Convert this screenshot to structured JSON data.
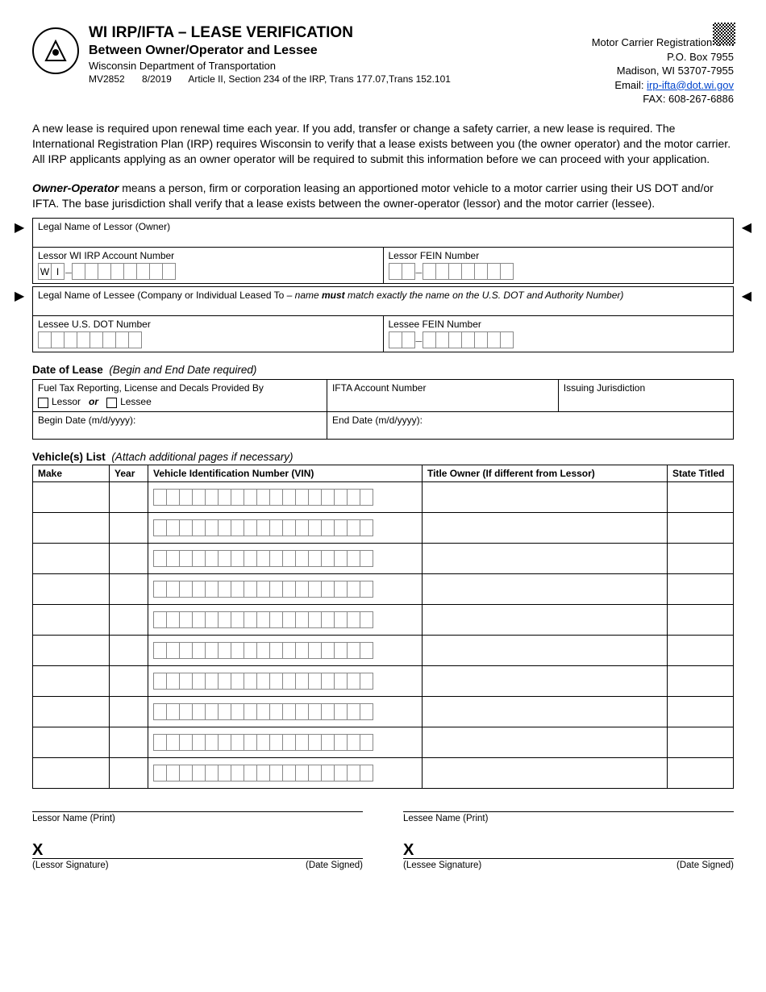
{
  "header": {
    "title": "WI IRP/IFTA – LEASE VERIFICATION",
    "subtitle": "Between Owner/Operator and Lessee",
    "department": "Wisconsin Department of Transportation",
    "form_no": "MV2852",
    "form_date": "8/2019",
    "form_ref": "Article II, Section 234 of the IRP, Trans 177.07,Trans 152.101"
  },
  "address": {
    "unit": "Motor Carrier Registration Unit",
    "pobox": "P.O. Box 7955",
    "citystate": "Madison, WI 53707-7955",
    "email_label": "Email: ",
    "email": "irp-ifta@dot.wi.gov",
    "fax": "FAX: 608-267-6886"
  },
  "para1": "A new lease is required upon renewal time each year. If you add, transfer or change a safety carrier, a new lease is required. The International Registration Plan (IRP) requires Wisconsin to verify that a lease exists between you (the owner operator) and the motor carrier. All IRP applicants applying as an owner operator will be required to submit this information before we can proceed with your application.",
  "para2_strong": "Owner-Operator",
  "para2_rest": " means a person, firm or corporation leasing an apportioned motor vehicle to a motor carrier using their US DOT and/or IFTA. The base jurisdiction shall verify that a lease exists between the owner-operator (lessor) and the motor carrier (lessee).",
  "fields": {
    "lessor_legal_name": "Legal Name of Lessor (Owner)",
    "lessor_irp": "Lessor WI IRP Account Number",
    "lessor_fein": "Lessor FEIN Number",
    "lessee_legal_name_pre": "Legal Name of Lessee (Company or Individual Leased To – ",
    "lessee_legal_name_em": "name ",
    "lessee_legal_name_bold": "must",
    "lessee_legal_name_post": " match exactly the name on the U.S. DOT and Authority Number)",
    "lessee_dot": "Lessee U.S. DOT Number",
    "lessee_fein": "Lessee FEIN Number",
    "wi_prefix_w": "W",
    "wi_prefix_i": "I"
  },
  "date_section": {
    "title": "Date of Lease",
    "note": "(Begin and End Date required)",
    "fuel_tax": "Fuel Tax Reporting, License and Decals Provided By",
    "lessor": "Lessor",
    "or": "or",
    "lessee": "Lessee",
    "ifta_acct": "IFTA Account Number",
    "jurisdiction": "Issuing Jurisdiction",
    "begin": "Begin Date (m/d/yyyy):",
    "end": "End Date (m/d/yyyy):"
  },
  "vehicle_section": {
    "title": "Vehicle(s) List",
    "note": "(Attach additional pages if necessary)",
    "cols": {
      "make": "Make",
      "year": "Year",
      "vin": "Vehicle Identification Number (VIN)",
      "owner": "Title Owner (If different from Lessor)",
      "state": "State Titled"
    },
    "row_count": 10,
    "vin_box_count": 17
  },
  "signatures": {
    "lessor_print": "Lessor Name (Print)",
    "lessee_print": "Lessee Name (Print)",
    "x": "X",
    "lessor_sig": "(Lessor Signature)",
    "lessee_sig": "(Lessee Signature)",
    "date": "(Date Signed)"
  },
  "colors": {
    "link": "#0044cc",
    "border": "#000000",
    "cellbox_border": "#888888"
  }
}
